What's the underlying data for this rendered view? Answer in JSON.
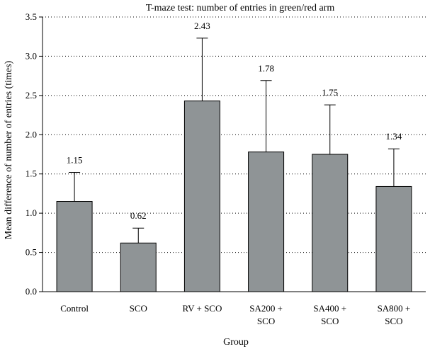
{
  "chart_data": {
    "type": "bar",
    "title": "T-maze test: number of entries in green/red arm",
    "xlabel": "Group",
    "ylabel": "Mean difference of number of entries (times)",
    "categories": [
      [
        "Control"
      ],
      [
        "SCO"
      ],
      [
        "RV + SCO"
      ],
      [
        "SA200 +",
        "SCO"
      ],
      [
        "SA400 +",
        "SCO"
      ],
      [
        "SA800 +",
        "SCO"
      ]
    ],
    "values": [
      1.15,
      0.62,
      2.43,
      1.78,
      1.75,
      1.34
    ],
    "value_labels": [
      "1.15",
      "0.62",
      "2.43",
      "1.78",
      "1.75",
      "1.34"
    ],
    "error_upper": [
      0.37,
      0.19,
      0.8,
      0.91,
      0.63,
      0.48
    ],
    "ylim": [
      0,
      3.5
    ],
    "yticks": [
      "0.0",
      "0.5",
      "1.0",
      "1.5",
      "2.0",
      "2.5",
      "3.0",
      "3.5"
    ],
    "grid": "horizontal dotted",
    "bar_color": "#8f9496"
  }
}
